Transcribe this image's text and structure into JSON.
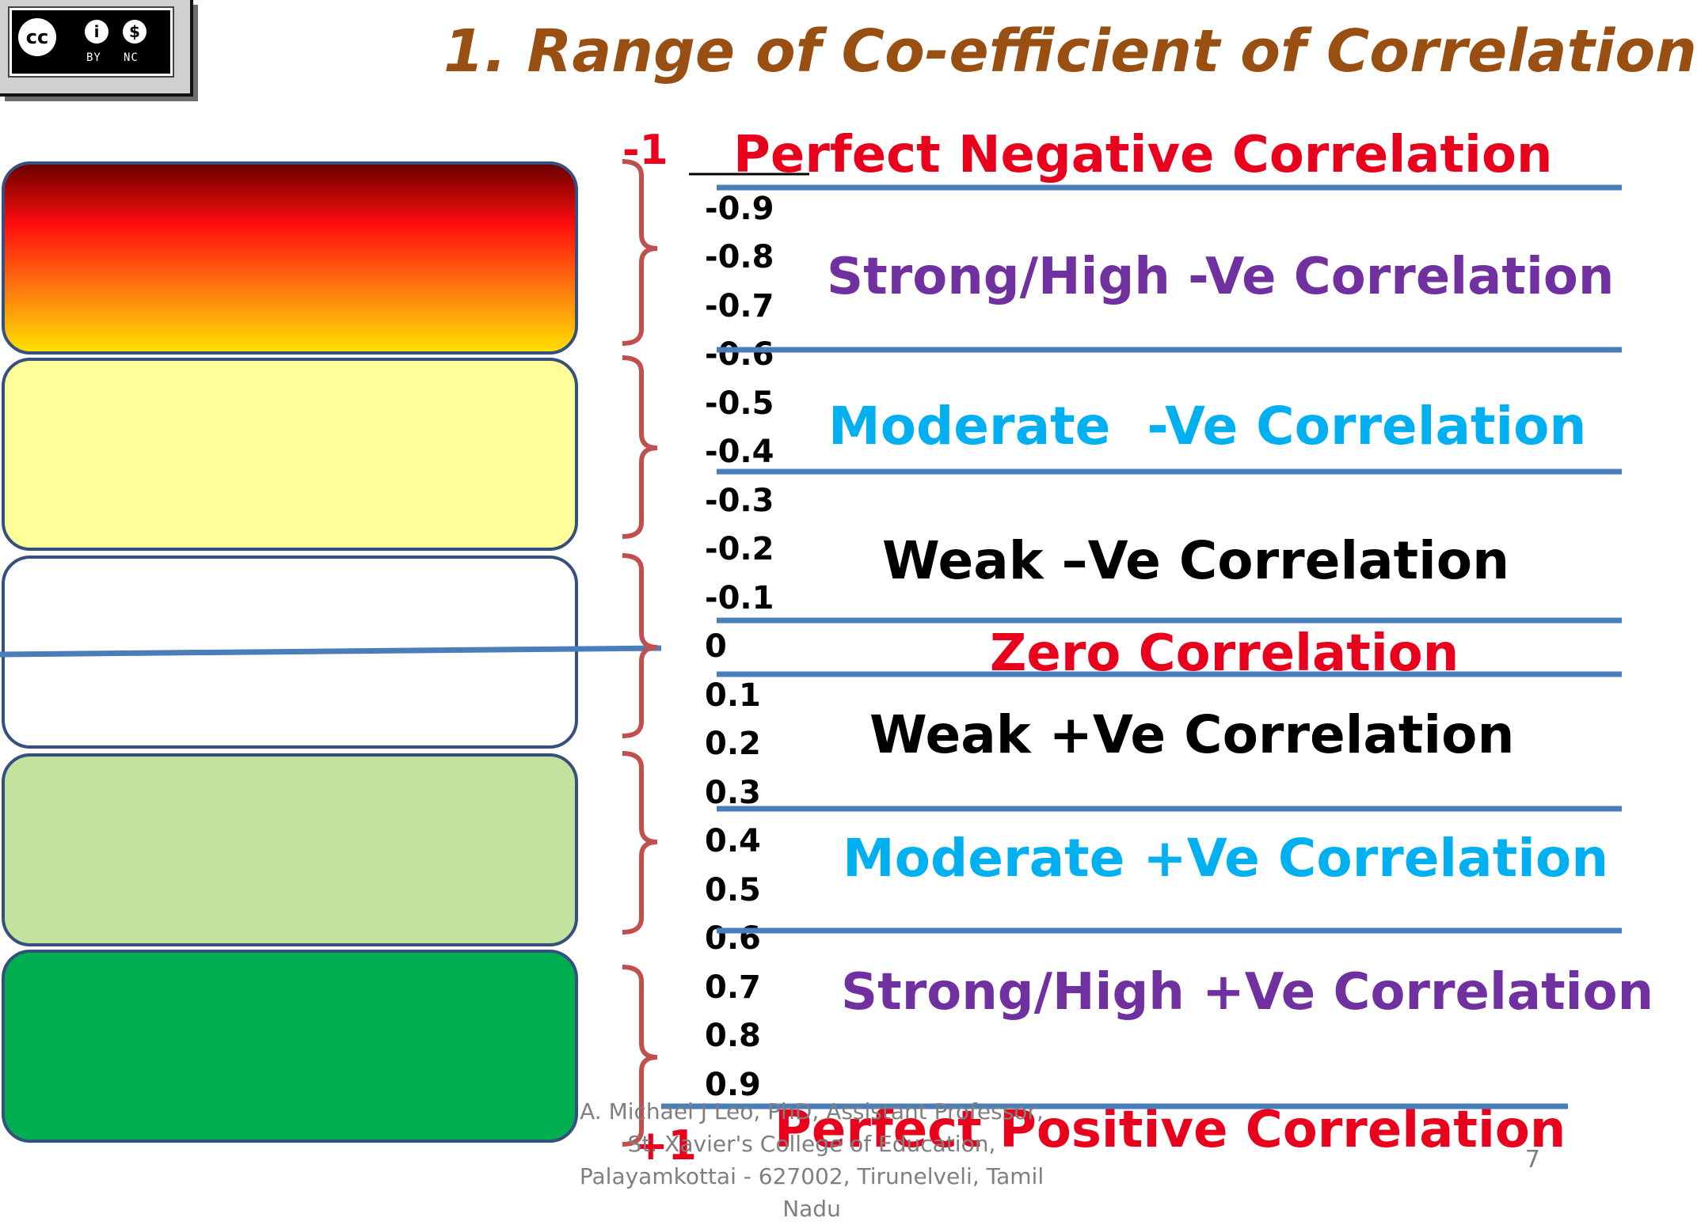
{
  "title": "1. Range of Co-efficient of Correlation",
  "license_badge": {
    "icon": "cc-by-nc-icon",
    "labels": {
      "cc": "cc",
      "by": "BY",
      "nc": "NC"
    }
  },
  "scale": {
    "start": "-1",
    "end": "+1",
    "values": [
      "-0.9",
      "-0.8",
      "-0.7",
      "-0.6",
      "-0.5",
      "-0.4",
      "-0.3",
      "-0.2",
      "-0.1",
      "0",
      "0.1",
      "0.2",
      "0.3",
      "0.4",
      "0.5",
      "0.6",
      "0.7",
      "0.8",
      "0.9"
    ]
  },
  "categories": {
    "perfect_negative": "Perfect Negative Correlation",
    "strong_negative": "Strong/High -Ve Correlation",
    "moderate_negative": "Moderate  -Ve Correlation",
    "weak_negative": "Weak –Ve Correlation",
    "zero": "Zero Correlation",
    "weak_positive": "Weak +Ve Correlation",
    "moderate_positive": "Moderate +Ve Correlation",
    "strong_positive": "Strong/High +Ve Correlation",
    "perfect_positive": "Perfect Positive Correlation"
  },
  "colors": {
    "title": "#9a4f12",
    "red": "#e8001c",
    "purple": "#7030a0",
    "cyan": "#00b0f0",
    "black": "#000000",
    "divider": "#4a7ebb",
    "brace": "#c0504d",
    "band_moderate_negative": "#ffff99",
    "band_moderate_positive": "#c3e29e",
    "band_strong_positive": "#00b050"
  },
  "footer": {
    "credit": "A. Michael J Leo, PhD, Assistant Professor, St. Xavier's College of Education, Palayamkottai - 627002, Tirunelveli, Tamil Nadu",
    "slide_number": "7"
  }
}
